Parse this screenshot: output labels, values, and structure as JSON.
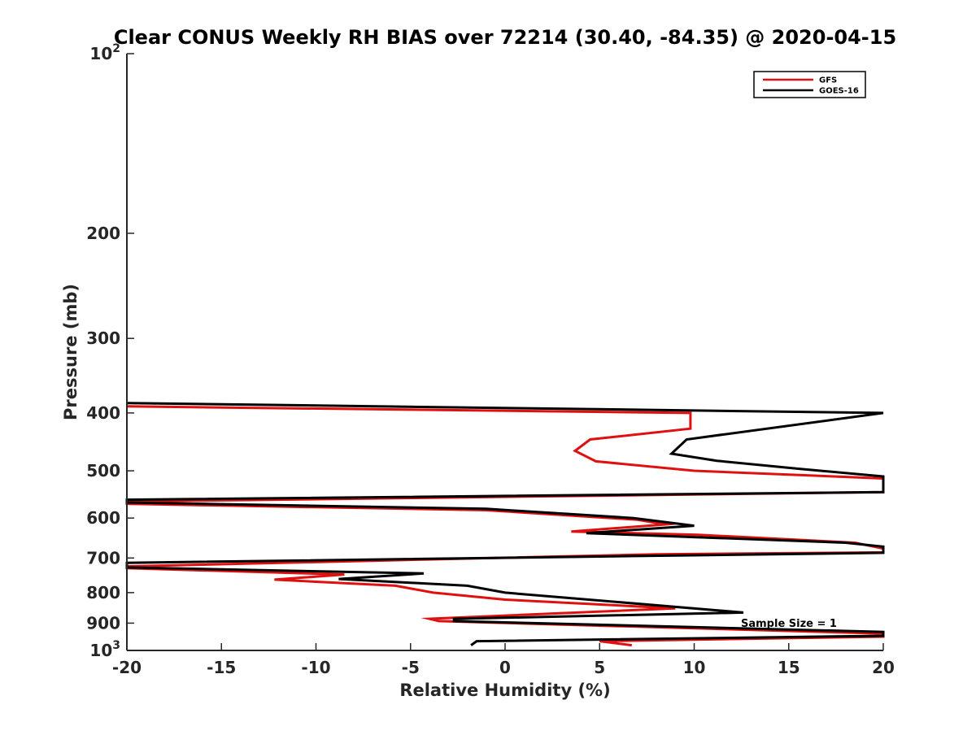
{
  "chart_data": {
    "type": "line",
    "title": "Clear CONUS Weekly RH BIAS over 72214 (30.40, -84.35) @ 2020-04-15",
    "xlabel": "Relative Humidity (%)",
    "ylabel": "Pressure (mb)",
    "xlim": [
      -20,
      20
    ],
    "ylim": [
      100,
      1000
    ],
    "y_scale": "log",
    "y_reversed": true,
    "grid": false,
    "legend_position": "top-right",
    "annotation": "Sample Size = 1",
    "x_ticks": [
      {
        "value": -20,
        "label": "-20"
      },
      {
        "value": -15,
        "label": "-15"
      },
      {
        "value": -10,
        "label": "-10"
      },
      {
        "value": -5,
        "label": "-5"
      },
      {
        "value": 0,
        "label": "0"
      },
      {
        "value": 5,
        "label": "5"
      },
      {
        "value": 10,
        "label": "10"
      },
      {
        "value": 15,
        "label": "15"
      },
      {
        "value": 20,
        "label": "20"
      }
    ],
    "y_ticks": [
      {
        "value": 100,
        "label": "10",
        "sup": "2"
      },
      {
        "value": 200,
        "label": "200",
        "sup": ""
      },
      {
        "value": 300,
        "label": "300",
        "sup": ""
      },
      {
        "value": 400,
        "label": "400",
        "sup": ""
      },
      {
        "value": 500,
        "label": "500",
        "sup": ""
      },
      {
        "value": 600,
        "label": "600",
        "sup": ""
      },
      {
        "value": 700,
        "label": "700",
        "sup": ""
      },
      {
        "value": 800,
        "label": "800",
        "sup": ""
      },
      {
        "value": 900,
        "label": "900",
        "sup": ""
      },
      {
        "value": 1000,
        "label": "10",
        "sup": "3"
      }
    ],
    "series": [
      {
        "name": "GFS",
        "color": "#e01010",
        "points": [
          [
            -20,
            390
          ],
          [
            9.8,
            400
          ],
          [
            9.8,
            425
          ],
          [
            4.5,
            443
          ],
          [
            3.7,
            463
          ],
          [
            4.8,
            482
          ],
          [
            10,
            500
          ],
          [
            20,
            515
          ],
          [
            20,
            543
          ],
          [
            -20,
            563
          ],
          [
            -20,
            568
          ],
          [
            -1,
            582
          ],
          [
            7,
            604
          ],
          [
            8.5,
            615
          ],
          [
            3.5,
            632
          ],
          [
            10.2,
            640
          ],
          [
            18.5,
            660
          ],
          [
            20,
            675
          ],
          [
            20,
            685
          ],
          [
            8,
            690
          ],
          [
            -20,
            723
          ],
          [
            -20,
            728
          ],
          [
            -8.5,
            746
          ],
          [
            -12.2,
            761
          ],
          [
            -5.8,
            779
          ],
          [
            -3.8,
            800
          ],
          [
            0,
            822
          ],
          [
            9,
            850
          ],
          [
            -4,
            885
          ],
          [
            -3.5,
            893
          ],
          [
            20,
            937
          ],
          [
            20,
            948
          ],
          [
            5,
            965
          ],
          [
            6.7,
            980
          ]
        ]
      },
      {
        "name": "GOES-16",
        "color": "#000000",
        "points": [
          [
            -20,
            385
          ],
          [
            20,
            400
          ],
          [
            9.6,
            443
          ],
          [
            8.8,
            468
          ],
          [
            11.2,
            481
          ],
          [
            15.5,
            496
          ],
          [
            20,
            511
          ],
          [
            20,
            543
          ],
          [
            -20,
            559
          ],
          [
            -20,
            565
          ],
          [
            -1,
            579
          ],
          [
            6.8,
            600
          ],
          [
            10,
            618
          ],
          [
            4.3,
            636
          ],
          [
            18,
            660
          ],
          [
            20,
            670
          ],
          [
            20,
            686
          ],
          [
            -20,
            713
          ],
          [
            -20,
            726
          ],
          [
            -4.3,
            743
          ],
          [
            -8.8,
            759
          ],
          [
            -2,
            779
          ],
          [
            0,
            800
          ],
          [
            12.6,
            864
          ],
          [
            -2.7,
            885
          ],
          [
            -2.7,
            893
          ],
          [
            20,
            931
          ],
          [
            20,
            945
          ],
          [
            -1.5,
            965
          ],
          [
            -1.8,
            980
          ]
        ]
      }
    ]
  }
}
